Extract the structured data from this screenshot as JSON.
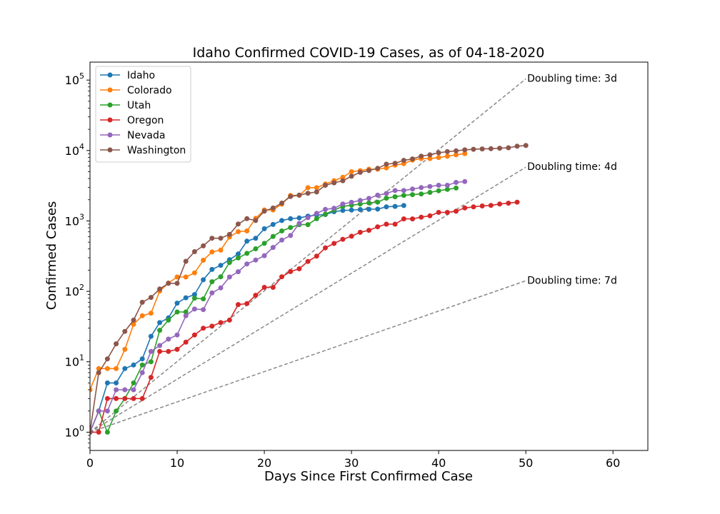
{
  "chart_data": {
    "type": "line",
    "title": "Idaho Confirmed COVID-19 Cases, as of 04-18-2020",
    "xlabel": "Days Since First Confirmed Case",
    "ylabel": "Confirmed Cases",
    "xlim": [
      0,
      64
    ],
    "ylim": [
      0.55,
      180000
    ],
    "yscale": "log",
    "grid": false,
    "legend_position": "top-left",
    "x_ticks": [
      0,
      10,
      20,
      30,
      40,
      50,
      60
    ],
    "y_ticks": [
      {
        "value": 1,
        "base": "10",
        "exp": "0"
      },
      {
        "value": 10,
        "base": "10",
        "exp": "1"
      },
      {
        "value": 100,
        "base": "10",
        "exp": "2"
      },
      {
        "value": 1000,
        "base": "10",
        "exp": "3"
      },
      {
        "value": 10000,
        "base": "10",
        "exp": "4"
      },
      {
        "value": 100000,
        "base": "10",
        "exp": "5"
      }
    ],
    "series": [
      {
        "name": "Idaho",
        "color": "#1f77b4",
        "start": 0,
        "values": [
          1,
          2,
          5,
          5,
          8,
          9,
          11,
          23,
          36,
          42,
          68,
          81,
          90,
          146,
          205,
          234,
          281,
          340,
          516,
          567,
          775,
          891,
          1013,
          1077,
          1101,
          1170,
          1210,
          1232,
          1353,
          1407,
          1426,
          1453,
          1464,
          1473,
          1587,
          1609,
          1655
        ]
      },
      {
        "name": "Colorado",
        "color": "#ff7f0e",
        "start": 0,
        "values": [
          4,
          8,
          8,
          8,
          15,
          34,
          45,
          49,
          101,
          131,
          160,
          160,
          183,
          277,
          363,
          385,
          591,
          704,
          720,
          1086,
          1430,
          1430,
          1734,
          2307,
          2307,
          2966,
          2966,
          3342,
          3728,
          4173,
          5007,
          5172,
          5429,
          5429,
          5655,
          6202,
          6510,
          7303,
          7691,
          7691,
          7950,
          8280,
          8675,
          9047
        ]
      },
      {
        "name": "Utah",
        "color": "#2ca02c",
        "start": 0,
        "values": [
          1,
          2,
          1,
          2,
          3,
          5,
          9,
          10,
          28,
          39,
          51,
          51,
          80,
          78,
          137,
          161,
          257,
          298,
          346,
          402,
          480,
          602,
          720,
          806,
          887,
          887,
          1074,
          1246,
          1428,
          1605,
          1675,
          1738,
          1804,
          1846,
          2103,
          2206,
          2303,
          2363,
          2412,
          2542,
          2683,
          2805,
          2931
        ]
      },
      {
        "name": "Oregon",
        "color": "#d62728",
        "start": 0,
        "values": [
          1,
          1,
          3,
          3,
          3,
          3,
          3,
          6,
          14,
          14,
          15,
          19,
          24,
          30,
          32,
          36,
          39,
          65,
          67,
          88,
          114,
          114,
          161,
          191,
          209,
          266,
          316,
          414,
          479,
          548,
          606,
          690,
          736,
          826,
          899,
          899,
          1068,
          1068,
          1132,
          1181,
          1321,
          1321,
          1371,
          1527,
          1584,
          1633,
          1663,
          1736,
          1785,
          1844
        ]
      },
      {
        "name": "Nevada",
        "color": "#9467bd",
        "start": 0,
        "values": [
          1,
          2,
          2,
          4,
          4,
          4,
          7,
          14,
          17,
          21,
          24,
          45,
          56,
          55,
          95,
          112,
          160,
          190,
          245,
          278,
          321,
          420,
          535,
          621,
          920,
          1113,
          1279,
          1458,
          1514,
          1742,
          1836,
          1953,
          2087,
          2318,
          2456,
          2700,
          2700,
          2836,
          2971,
          3088,
          3211,
          3211,
          3524,
          3626
        ]
      },
      {
        "name": "Washington",
        "color": "#8c564b",
        "start": 0,
        "values": [
          1,
          7,
          11,
          18,
          27,
          39,
          70,
          82,
          108,
          130,
          130,
          267,
          366,
          442,
          568,
          568,
          643,
          904,
          1076,
          1014,
          1376,
          1524,
          1793,
          2221,
          2328,
          2469,
          2580,
          3207,
          3477,
          3723,
          4310,
          4896,
          5187,
          5588,
          6389,
          6585,
          7247,
          7591,
          8311,
          8682,
          9276,
          9639,
          9887,
          10224,
          10411,
          10538,
          10609,
          10783,
          10942,
          11517,
          11790
        ]
      }
    ],
    "doubling_lines": [
      {
        "label": "Doubling time: 3d",
        "days": 3,
        "x0": 0,
        "x1": 50
      },
      {
        "label": "Doubling time: 4d",
        "days": 4,
        "x0": 0,
        "x1": 50
      },
      {
        "label": "Doubling time: 7d",
        "days": 7,
        "x0": 0,
        "x1": 50
      }
    ]
  }
}
